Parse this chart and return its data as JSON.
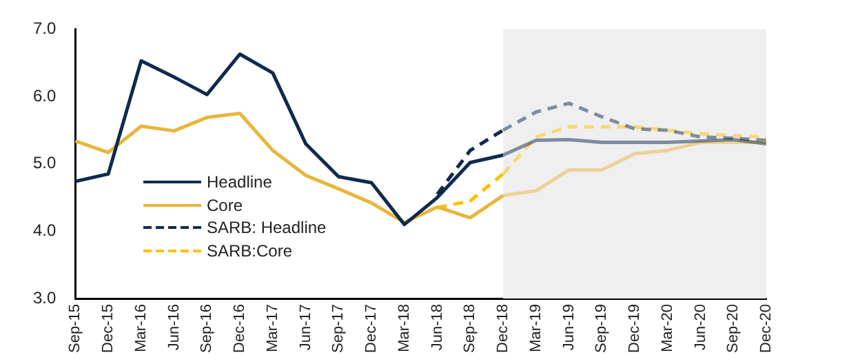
{
  "chart_data": {
    "type": "line",
    "categories": [
      "Sep-15",
      "Dec-15",
      "Mar-16",
      "Jun-16",
      "Sep-16",
      "Dec-16",
      "Mar-17",
      "Jun-17",
      "Sep-17",
      "Dec-17",
      "Mar-18",
      "Jun-18",
      "Sep-18",
      "Dec-18",
      "Mar-19",
      "Jun-19",
      "Sep-19",
      "Dec-19",
      "Mar-20",
      "Jun-20",
      "Sep-20",
      "Dec-20"
    ],
    "series": [
      {
        "name": "Headline",
        "color": "#0f2a4f",
        "line_style": "solid",
        "values": [
          4.74,
          4.85,
          6.53,
          6.29,
          6.03,
          6.63,
          6.35,
          5.3,
          4.81,
          4.72,
          4.1,
          4.5,
          5.02,
          5.13,
          5.35,
          5.36,
          5.32,
          5.32,
          5.32,
          5.34,
          5.36,
          5.3
        ]
      },
      {
        "name": "Core",
        "color": "#e8b63c",
        "line_style": "solid",
        "values": [
          5.34,
          5.17,
          5.56,
          5.49,
          5.69,
          5.75,
          5.2,
          4.83,
          4.63,
          4.42,
          4.13,
          4.36,
          4.2,
          4.53,
          4.6,
          4.91,
          4.91,
          5.15,
          5.2,
          5.32,
          5.32,
          5.32
        ]
      },
      {
        "name": "SARB: Headline",
        "color": "#0f2a4f",
        "line_style": "dashed",
        "values": [
          null,
          null,
          null,
          null,
          null,
          null,
          null,
          null,
          null,
          null,
          null,
          4.55,
          5.2,
          5.5,
          5.77,
          5.9,
          5.7,
          5.52,
          5.5,
          5.4,
          5.38,
          5.35
        ]
      },
      {
        "name": "SARB:Core",
        "color": "#ffc000",
        "line_style": "dashed",
        "values": [
          null,
          null,
          null,
          null,
          null,
          null,
          null,
          null,
          null,
          null,
          null,
          4.35,
          4.45,
          4.85,
          5.4,
          5.55,
          5.55,
          5.55,
          5.5,
          5.45,
          5.42,
          5.4
        ]
      }
    ],
    "ylim": [
      3,
      7
    ],
    "yticks": [
      {
        "value": 3,
        "label": "3.0"
      },
      {
        "value": 4,
        "label": "4.0"
      },
      {
        "value": 5,
        "label": "5.0"
      },
      {
        "value": 6,
        "label": "6.0"
      },
      {
        "value": 7,
        "label": "7.0"
      }
    ],
    "bands": [
      {
        "axis": "x",
        "from": "Dec-18",
        "to": "Dec-20",
        "color": "#efefef"
      }
    ],
    "grid": false,
    "legend": "bottom left",
    "marker": "none"
  }
}
